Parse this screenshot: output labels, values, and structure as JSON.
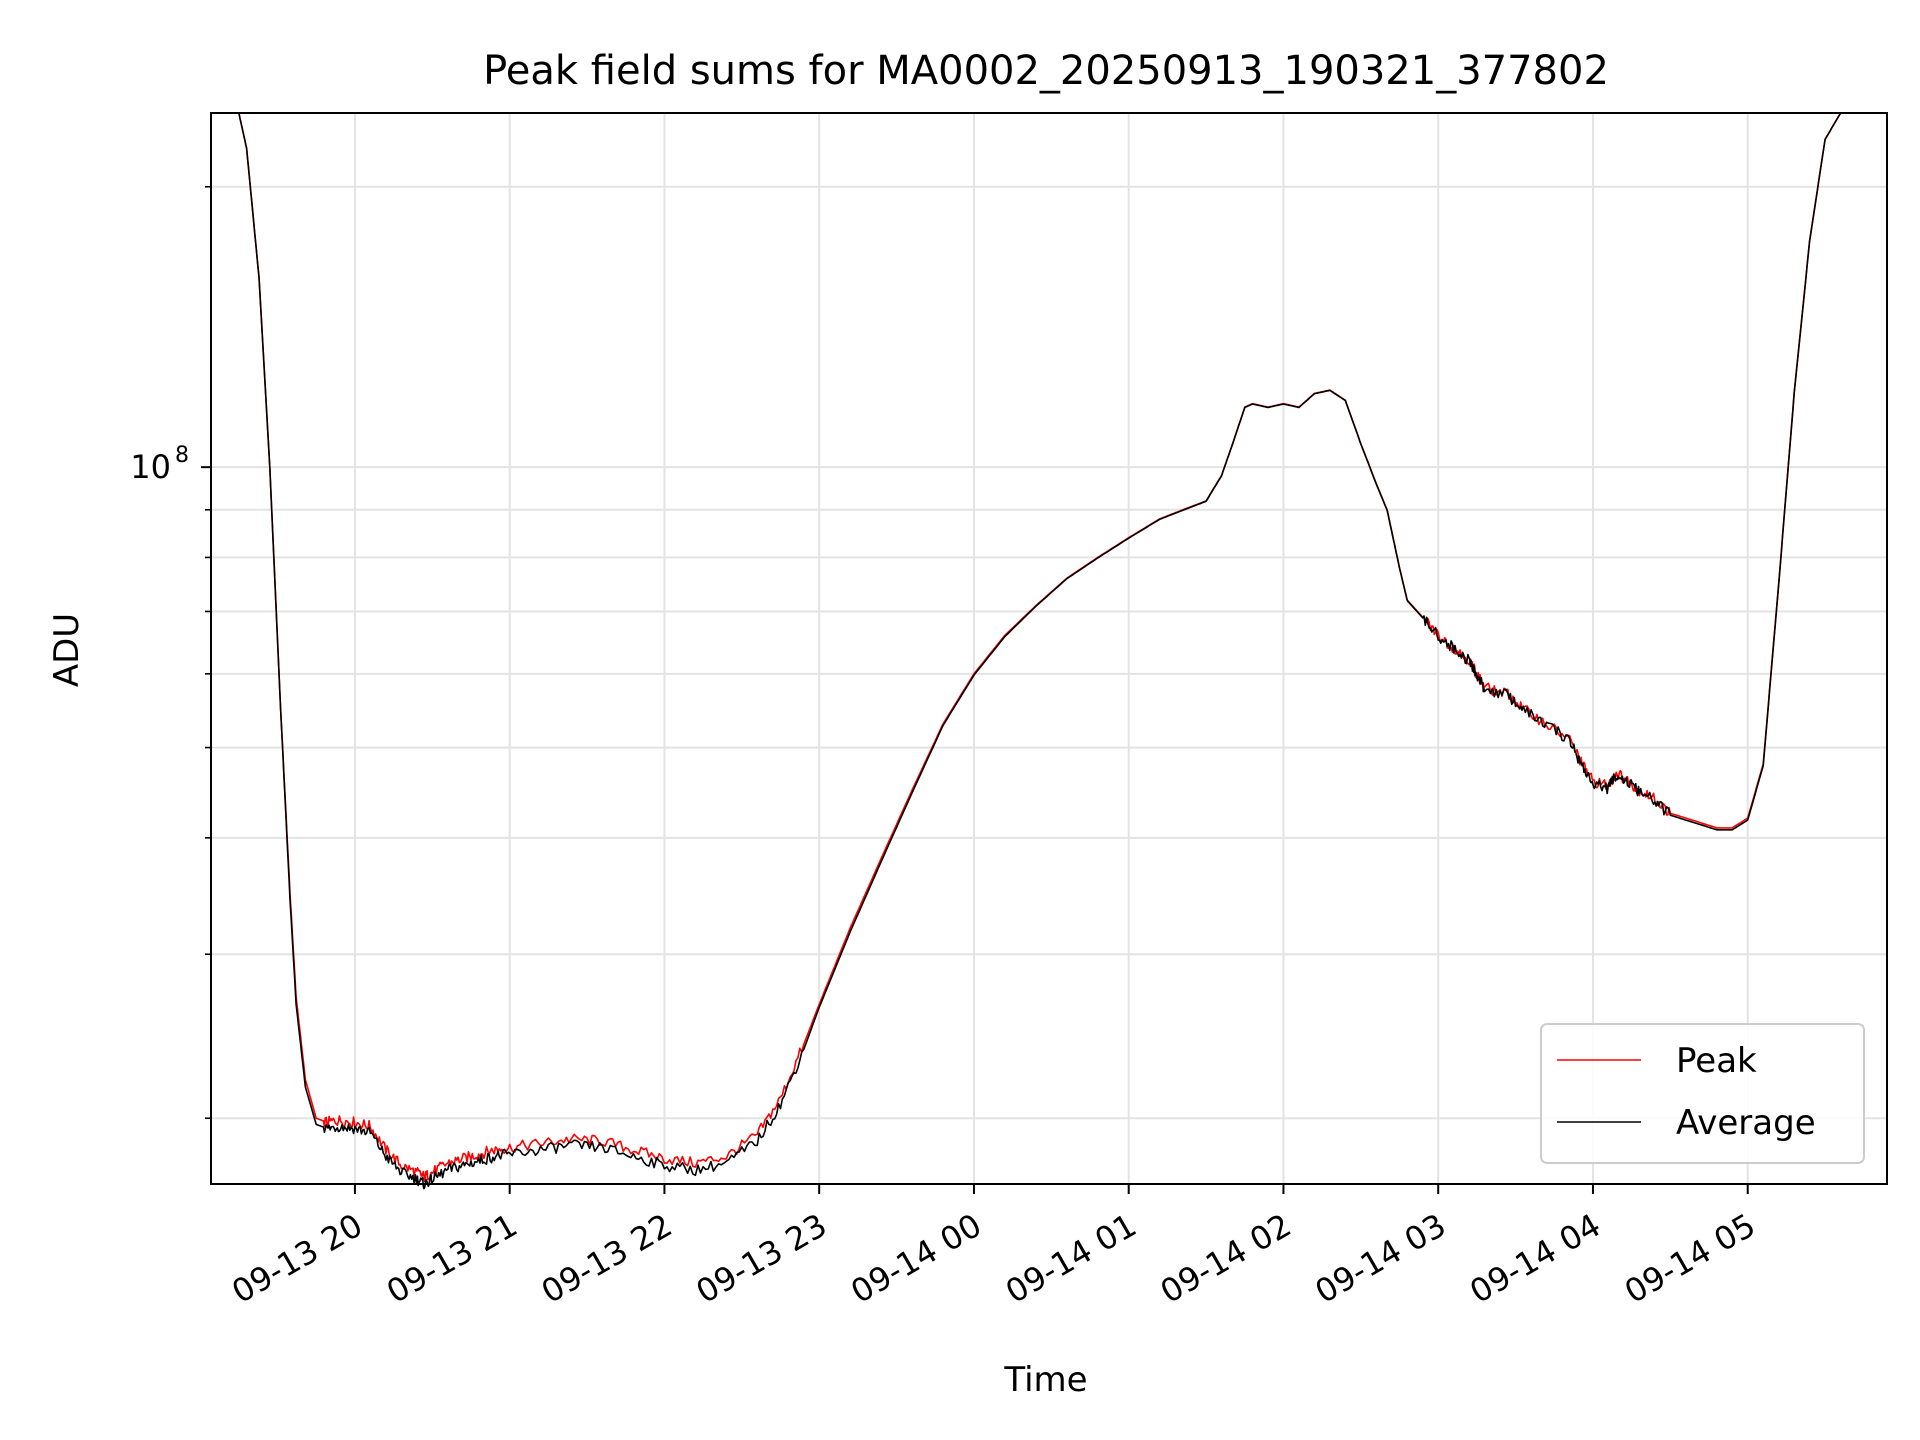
{
  "chart_data": {
    "type": "line",
    "title": "Peak field sums for MA0002_20250913_190321_377802",
    "xlabel": "Time",
    "ylabel": "ADU",
    "yscale": "log",
    "y_tick_label": {
      "base": "10",
      "exponent": "8",
      "value": 100000000
    },
    "y_minor_ticks": [
      20000000,
      30000000,
      40000000,
      50000000,
      60000000,
      70000000,
      80000000,
      90000000,
      200000000
    ],
    "x_range_hours": [
      19.07,
      29.9
    ],
    "ylim": [
      17000000,
      240000000
    ],
    "x_ticks": [
      {
        "hour": 20,
        "label": "09-13 20"
      },
      {
        "hour": 21,
        "label": "09-13 21"
      },
      {
        "hour": 22,
        "label": "09-13 22"
      },
      {
        "hour": 23,
        "label": "09-13 23"
      },
      {
        "hour": 24,
        "label": "09-14 00"
      },
      {
        "hour": 25,
        "label": "09-14 01"
      },
      {
        "hour": 26,
        "label": "09-14 02"
      },
      {
        "hour": 27,
        "label": "09-14 03"
      },
      {
        "hour": 28,
        "label": "09-14 04"
      },
      {
        "hour": 29,
        "label": "09-14 05"
      }
    ],
    "grid": true,
    "legend_position": "bottom-right",
    "series": [
      {
        "name": "Peak",
        "color": "#ff0000",
        "x_hours": [
          19.07,
          19.25,
          19.3,
          19.38,
          19.45,
          19.52,
          19.58,
          19.62,
          19.68,
          19.75,
          19.82,
          19.9,
          20.0,
          20.1,
          20.2,
          20.3,
          20.4,
          20.45,
          20.5,
          20.6,
          20.7,
          20.8,
          20.9,
          21.0,
          21.2,
          21.4,
          21.6,
          21.8,
          22.0,
          22.2,
          22.4,
          22.6,
          22.75,
          22.9,
          23.0,
          23.2,
          23.4,
          23.6,
          23.8,
          24.0,
          24.2,
          24.4,
          24.6,
          24.8,
          25.0,
          25.2,
          25.35,
          25.5,
          25.6,
          25.68,
          25.75,
          25.8,
          25.9,
          26.0,
          26.1,
          26.2,
          26.3,
          26.4,
          26.5,
          26.6,
          26.67,
          26.75,
          26.8,
          26.9,
          27.0,
          27.1,
          27.2,
          27.25,
          27.3,
          27.45,
          27.55,
          27.7,
          27.85,
          27.93,
          28.0,
          28.1,
          28.15,
          28.23,
          28.3,
          28.4,
          28.5,
          28.7,
          28.8,
          28.9,
          29.0,
          29.1,
          29.2,
          29.3,
          29.4,
          29.5,
          29.6,
          29.65,
          29.7,
          29.75,
          29.9
        ],
        "values": [
          240000000,
          240000000,
          220000000,
          160000000,
          100000000,
          55000000,
          35000000,
          27000000,
          22000000,
          20000000,
          19800000,
          19900000,
          19800000,
          19600000,
          18500000,
          17800000,
          17500000,
          17300000,
          17500000,
          17900000,
          18100000,
          18300000,
          18500000,
          18600000,
          18800000,
          19000000,
          18900000,
          18500000,
          18100000,
          17900000,
          18200000,
          19200000,
          21000000,
          24000000,
          26500000,
          32000000,
          38000000,
          45000000,
          53000000,
          60000000,
          66000000,
          71000000,
          76000000,
          80000000,
          84000000,
          88000000,
          90000000,
          92000000,
          98000000,
          107000000,
          116000000,
          117000000,
          116000000,
          117000000,
          116000000,
          120000000,
          121000000,
          118000000,
          106000000,
          96000000,
          90000000,
          78000000,
          72000000,
          69000000,
          66000000,
          64000000,
          62000000,
          60000000,
          58000000,
          57000000,
          55000000,
          53000000,
          51000000,
          48000000,
          46000000,
          45500000,
          47000000,
          46000000,
          45000000,
          44000000,
          42500000,
          41500000,
          41000000,
          41000000,
          42000000,
          48000000,
          75000000,
          120000000,
          175000000,
          225000000,
          240000000,
          240000000,
          240000000,
          240000000,
          240000000
        ]
      },
      {
        "name": "Average",
        "color": "#000000",
        "x_hours": [
          19.07,
          19.25,
          19.3,
          19.38,
          19.45,
          19.52,
          19.58,
          19.62,
          19.68,
          19.75,
          19.82,
          19.9,
          20.0,
          20.1,
          20.2,
          20.3,
          20.4,
          20.45,
          20.5,
          20.6,
          20.7,
          20.8,
          20.9,
          21.0,
          21.2,
          21.4,
          21.6,
          21.8,
          22.0,
          22.2,
          22.4,
          22.6,
          22.75,
          22.9,
          23.0,
          23.2,
          23.4,
          23.6,
          23.8,
          24.0,
          24.2,
          24.4,
          24.6,
          24.8,
          25.0,
          25.2,
          25.35,
          25.5,
          25.6,
          25.68,
          25.75,
          25.8,
          25.9,
          26.0,
          26.1,
          26.2,
          26.3,
          26.4,
          26.5,
          26.6,
          26.67,
          26.75,
          26.8,
          26.9,
          27.0,
          27.1,
          27.2,
          27.25,
          27.3,
          27.45,
          27.55,
          27.7,
          27.85,
          27.93,
          28.0,
          28.1,
          28.15,
          28.23,
          28.3,
          28.4,
          28.5,
          28.7,
          28.8,
          28.9,
          29.0,
          29.1,
          29.2,
          29.3,
          29.4,
          29.5,
          29.6,
          29.65,
          29.7,
          29.75,
          29.9
        ],
        "values": [
          240000000,
          240000000,
          220000000,
          160000000,
          100000000,
          55000000,
          34500000,
          26500000,
          21600000,
          19700000,
          19500000,
          19600000,
          19500000,
          19300000,
          18200000,
          17500000,
          17200000,
          17000000,
          17200000,
          17600000,
          17800000,
          18000000,
          18200000,
          18300000,
          18500000,
          18700000,
          18600000,
          18200000,
          17800000,
          17600000,
          17900000,
          18900000,
          20700000,
          23700000,
          26300000,
          31700000,
          37700000,
          44700000,
          52800000,
          59800000,
          65800000,
          70900000,
          75900000,
          79900000,
          83900000,
          87900000,
          89900000,
          91900000,
          97900000,
          106900000,
          115900000,
          116900000,
          115900000,
          116900000,
          115900000,
          119900000,
          120900000,
          117900000,
          105900000,
          95900000,
          89900000,
          77900000,
          71900000,
          68900000,
          65900000,
          63900000,
          61900000,
          59800000,
          57800000,
          56900000,
          54900000,
          52900000,
          50900000,
          47800000,
          45700000,
          45200000,
          46800000,
          45800000,
          44800000,
          43800000,
          42300000,
          41300000,
          40800000,
          40800000,
          41800000,
          47800000,
          74800000,
          119800000,
          174800000,
          224800000,
          240000000,
          240000000,
          240000000,
          240000000,
          240000000
        ]
      }
    ]
  }
}
